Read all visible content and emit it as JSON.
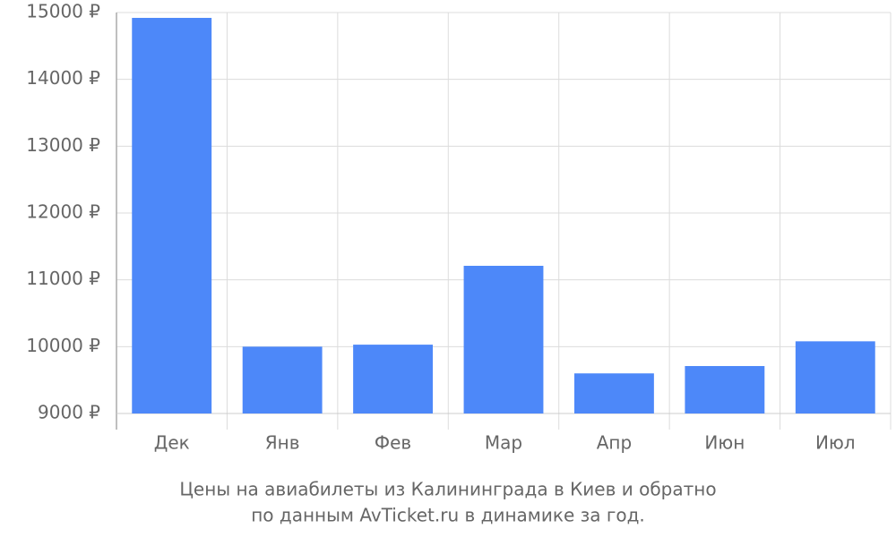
{
  "chart_data": {
    "type": "bar",
    "title": "Цены на авиабилеты из Калининграда в Киев и обратно",
    "subtitle": "по данным AvTicket.ru в динамике за год.",
    "categories": [
      "Дек",
      "Янв",
      "Фев",
      "Мар",
      "Апр",
      "Июн",
      "Июл"
    ],
    "values": [
      14920,
      10000,
      10030,
      11210,
      9600,
      9710,
      10080
    ],
    "color": "#4d88f9",
    "ylim": [
      9000,
      15000
    ],
    "yticks": [
      {
        "value": 9000,
        "label": "9000 ₽"
      },
      {
        "value": 10000,
        "label": "10000 ₽"
      },
      {
        "value": 11000,
        "label": "11000 ₽"
      },
      {
        "value": 12000,
        "label": "12000 ₽"
      },
      {
        "value": 13000,
        "label": "13000 ₽"
      },
      {
        "value": 14000,
        "label": "14000 ₽"
      },
      {
        "value": 15000,
        "label": "15000 ₽"
      }
    ],
    "grid": true
  }
}
